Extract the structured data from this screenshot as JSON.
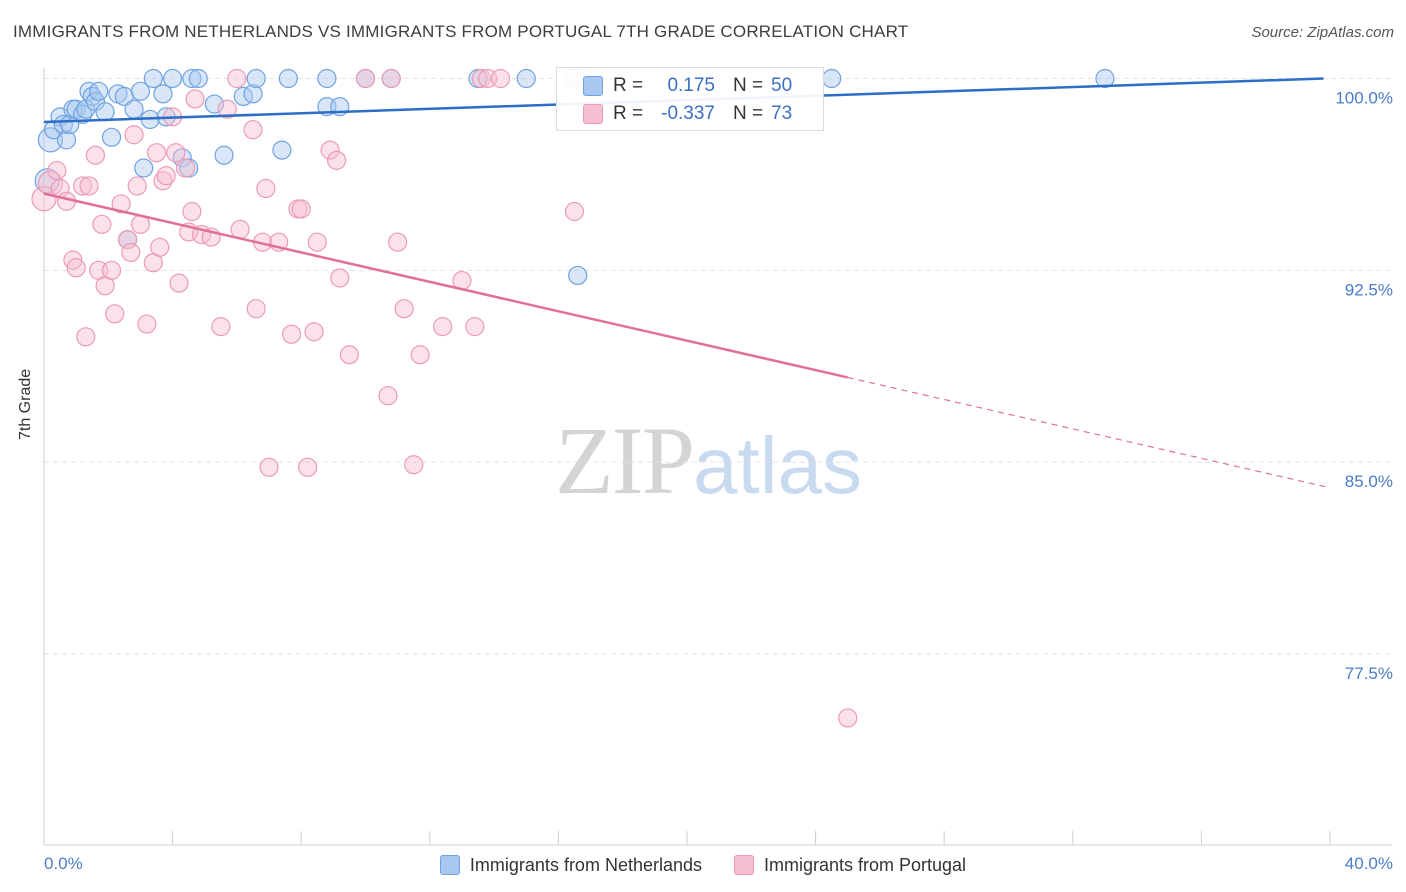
{
  "title": "IMMIGRANTS FROM NETHERLANDS VS IMMIGRANTS FROM PORTUGAL 7TH GRADE CORRELATION CHART",
  "source": "Source: ZipAtlas.com",
  "watermark": {
    "zip": "ZIP",
    "atlas": "atlas"
  },
  "stats": [
    {
      "r_label": "R =",
      "r_value": "0.175",
      "n_label": "N =",
      "n_value": "50",
      "color": "#a9c8f0"
    },
    {
      "r_label": "R =",
      "r_value": "-0.337",
      "n_label": "N =",
      "n_value": "73",
      "color": "#f6bfd1"
    }
  ],
  "legend": [
    {
      "label": "Immigrants from Netherlands",
      "color": "#a9c8f0"
    },
    {
      "label": "Immigrants from Portugal",
      "color": "#f6bfd1"
    }
  ],
  "chart_data": {
    "type": "scatter",
    "title": "IMMIGRANTS FROM NETHERLANDS VS IMMIGRANTS FROM PORTUGAL 7TH GRADE CORRELATION CHART",
    "xlabel": "",
    "ylabel": "7th Grade",
    "xlim": [
      0,
      40
    ],
    "ylim": [
      71,
      101.5
    ],
    "x_tick_labels": [
      "0.0%",
      "40.0%"
    ],
    "y_ticks": [
      77.5,
      85.0,
      92.5,
      100.0
    ],
    "y_tick_labels": [
      "77.5%",
      "85.0%",
      "92.5%",
      "100.0%"
    ],
    "grid": "horizontal dashed",
    "legend_position": "bottom-center",
    "series": [
      {
        "name": "Immigrants from Netherlands",
        "color": "#6fa3e0",
        "fill": "#a9c8f0",
        "line_color": "#2d6ec9",
        "trend": {
          "x": [
            0,
            39.8
          ],
          "y": [
            98.3,
            100.0
          ],
          "dashed_from": null
        },
        "points": [
          [
            0.1,
            96.0
          ],
          [
            0.2,
            97.6
          ],
          [
            0.3,
            98.0
          ],
          [
            0.5,
            98.5
          ],
          [
            0.6,
            98.2
          ],
          [
            0.7,
            97.6
          ],
          [
            0.8,
            98.2
          ],
          [
            0.9,
            98.8
          ],
          [
            1.0,
            98.8
          ],
          [
            1.2,
            98.6
          ],
          [
            1.3,
            98.8
          ],
          [
            1.4,
            99.5
          ],
          [
            1.5,
            99.3
          ],
          [
            1.6,
            99.1
          ],
          [
            1.7,
            99.5
          ],
          [
            1.9,
            98.7
          ],
          [
            2.1,
            97.7
          ],
          [
            2.3,
            99.4
          ],
          [
            2.5,
            99.3
          ],
          [
            2.6,
            93.7
          ],
          [
            2.8,
            98.8
          ],
          [
            3.0,
            99.5
          ],
          [
            3.1,
            96.5
          ],
          [
            3.3,
            98.4
          ],
          [
            3.4,
            100.0
          ],
          [
            3.7,
            99.4
          ],
          [
            3.8,
            98.5
          ],
          [
            4.0,
            100.0
          ],
          [
            4.3,
            96.9
          ],
          [
            4.5,
            96.5
          ],
          [
            4.6,
            100.0
          ],
          [
            4.8,
            100.0
          ],
          [
            5.3,
            99.0
          ],
          [
            5.6,
            97.0
          ],
          [
            6.2,
            99.3
          ],
          [
            6.5,
            99.4
          ],
          [
            6.6,
            100.0
          ],
          [
            7.6,
            100.0
          ],
          [
            7.4,
            97.2
          ],
          [
            8.8,
            100.0
          ],
          [
            8.8,
            98.9
          ],
          [
            9.2,
            98.9
          ],
          [
            10.0,
            100.0
          ],
          [
            10.8,
            100.0
          ],
          [
            13.5,
            100.0
          ],
          [
            15.0,
            100.0
          ],
          [
            16.5,
            100.0
          ],
          [
            16.6,
            92.3
          ],
          [
            24.5,
            100.0
          ],
          [
            33.0,
            100.0
          ]
        ]
      },
      {
        "name": "Immigrants from Portugal",
        "color": "#ec9ab7",
        "fill": "#f6bfd1",
        "line_color": "#e0709a",
        "trend": {
          "x": [
            0,
            40
          ],
          "y": [
            95.5,
            84.0
          ],
          "dashed_from": 25.0
        },
        "points": [
          [
            0.0,
            95.3
          ],
          [
            0.2,
            95.9
          ],
          [
            0.4,
            96.4
          ],
          [
            0.5,
            95.7
          ],
          [
            0.7,
            95.2
          ],
          [
            0.9,
            92.9
          ],
          [
            1.0,
            92.6
          ],
          [
            1.2,
            95.8
          ],
          [
            1.3,
            89.9
          ],
          [
            1.4,
            95.8
          ],
          [
            1.6,
            97.0
          ],
          [
            1.7,
            92.5
          ],
          [
            1.8,
            94.3
          ],
          [
            1.9,
            91.9
          ],
          [
            2.1,
            92.5
          ],
          [
            2.2,
            90.8
          ],
          [
            2.4,
            95.1
          ],
          [
            2.6,
            93.7
          ],
          [
            2.7,
            93.2
          ],
          [
            2.8,
            97.8
          ],
          [
            2.9,
            95.8
          ],
          [
            3.0,
            94.3
          ],
          [
            3.2,
            90.4
          ],
          [
            3.4,
            92.8
          ],
          [
            3.5,
            97.1
          ],
          [
            3.6,
            93.4
          ],
          [
            3.7,
            96.0
          ],
          [
            3.8,
            96.2
          ],
          [
            4.0,
            98.5
          ],
          [
            4.1,
            97.1
          ],
          [
            4.2,
            92.0
          ],
          [
            4.4,
            96.5
          ],
          [
            4.5,
            94.0
          ],
          [
            4.6,
            94.8
          ],
          [
            4.7,
            99.2
          ],
          [
            4.9,
            93.9
          ],
          [
            5.2,
            93.8
          ],
          [
            5.5,
            90.3
          ],
          [
            5.7,
            98.8
          ],
          [
            6.0,
            100.0
          ],
          [
            6.1,
            94.1
          ],
          [
            6.5,
            98.0
          ],
          [
            6.6,
            91.0
          ],
          [
            6.8,
            93.6
          ],
          [
            6.9,
            95.7
          ],
          [
            7.0,
            84.8
          ],
          [
            7.3,
            93.6
          ],
          [
            7.7,
            90.0
          ],
          [
            7.9,
            94.9
          ],
          [
            8.0,
            94.9
          ],
          [
            8.2,
            84.8
          ],
          [
            8.4,
            90.1
          ],
          [
            8.5,
            93.6
          ],
          [
            8.9,
            97.2
          ],
          [
            9.1,
            96.8
          ],
          [
            9.2,
            92.2
          ],
          [
            9.5,
            89.2
          ],
          [
            10.0,
            100.0
          ],
          [
            10.7,
            87.6
          ],
          [
            11.0,
            93.6
          ],
          [
            11.2,
            91.0
          ],
          [
            11.5,
            84.9
          ],
          [
            11.7,
            89.2
          ],
          [
            12.4,
            90.3
          ],
          [
            13.0,
            92.1
          ],
          [
            13.4,
            90.3
          ],
          [
            13.6,
            100.0
          ],
          [
            13.8,
            100.0
          ],
          [
            14.2,
            100.0
          ],
          [
            16.5,
            94.8
          ],
          [
            16.8,
            100.0
          ],
          [
            25.0,
            75.0
          ],
          [
            10.8,
            100.0
          ]
        ]
      }
    ]
  }
}
